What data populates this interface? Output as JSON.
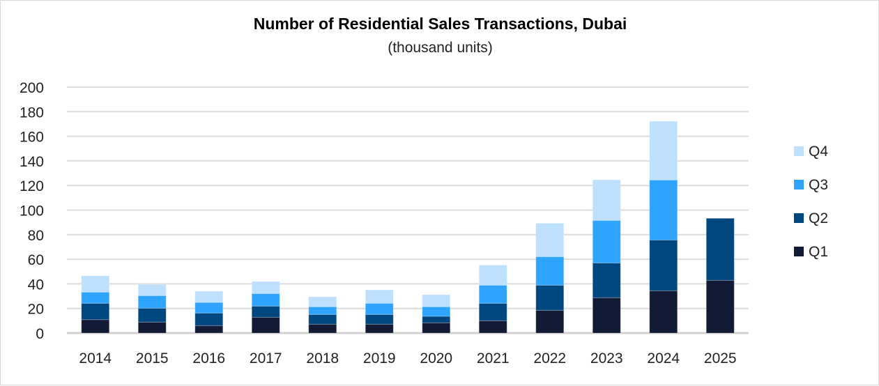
{
  "chart_data": {
    "type": "bar",
    "stacked": true,
    "title": "Number of Residential Sales Transactions, Dubai",
    "subtitle": "(thousand units)",
    "xlabel": "",
    "ylabel": "",
    "ylim": [
      0,
      200
    ],
    "yticks": [
      0,
      20,
      40,
      60,
      80,
      100,
      120,
      140,
      160,
      180,
      200
    ],
    "grid": true,
    "legend_position": "right",
    "categories": [
      "2014",
      "2015",
      "2016",
      "2017",
      "2018",
      "2019",
      "2020",
      "2021",
      "2022",
      "2023",
      "2024",
      "2025"
    ],
    "series": [
      {
        "name": "Q1",
        "color": "#121b35",
        "values": [
          10.9,
          8.9,
          6.0,
          12.8,
          7.2,
          7.2,
          8.3,
          10.0,
          18.5,
          28.7,
          34.4,
          42.9
        ]
      },
      {
        "name": "Q2",
        "color": "#00467f",
        "values": [
          13.3,
          11.3,
          10.3,
          9.1,
          7.9,
          7.9,
          5.3,
          14.2,
          20.4,
          28.3,
          41.3,
          50.4
        ]
      },
      {
        "name": "Q3",
        "color": "#2fa4ff",
        "values": [
          9.1,
          10.2,
          8.6,
          10.2,
          6.3,
          9.1,
          7.8,
          14.7,
          23.2,
          34.6,
          48.8,
          null
        ]
      },
      {
        "name": "Q4",
        "color": "#bde0fe",
        "values": [
          13.2,
          9.1,
          9.1,
          9.8,
          8.1,
          10.9,
          9.8,
          16.4,
          27.2,
          33.0,
          47.7,
          null
        ]
      }
    ]
  }
}
